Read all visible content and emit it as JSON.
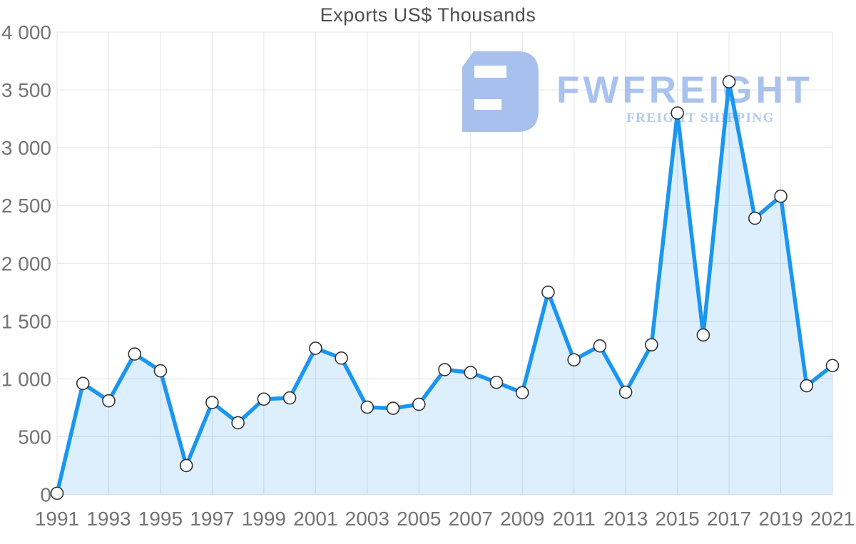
{
  "watermark": {
    "brand": "FWFREIGHT",
    "tagline": "FREIGHT SHIPPING",
    "logo_color": "#a7c0ed",
    "brand_color": "#a9c2ee",
    "tagline_color": "#b5c9f2"
  },
  "chart_data": {
    "type": "area",
    "title": "Exports US$ Thousands",
    "x": [
      1991,
      1992,
      1993,
      1994,
      1995,
      1996,
      1997,
      1998,
      1999,
      2000,
      2001,
      2002,
      2003,
      2004,
      2005,
      2006,
      2007,
      2008,
      2009,
      2010,
      2011,
      2012,
      2013,
      2014,
      2015,
      2016,
      2017,
      2018,
      2019,
      2020,
      2021
    ],
    "values": [
      10,
      960,
      810,
      1215,
      1070,
      250,
      795,
      620,
      825,
      835,
      1265,
      1180,
      755,
      745,
      780,
      1080,
      1055,
      970,
      880,
      1750,
      1165,
      1285,
      885,
      1295,
      3300,
      1380,
      3570,
      2390,
      2580,
      940,
      1115
    ],
    "xlabel": "",
    "ylabel": "",
    "ylim": [
      0,
      4000
    ],
    "y_ticks": [
      0,
      500,
      1000,
      1500,
      2000,
      2500,
      3000,
      3500,
      4000
    ],
    "y_tick_labels": [
      "0",
      "500",
      "1 000",
      "1 500",
      "2 000",
      "2 500",
      "3 000",
      "3 500",
      "4 000"
    ],
    "x_tick_labels": [
      "1991",
      "1993",
      "1995",
      "1997",
      "1999",
      "2001",
      "2003",
      "2005",
      "2007",
      "2009",
      "2011",
      "2013",
      "2015",
      "2017",
      "2019",
      "2021"
    ],
    "grid": true,
    "legend": "none",
    "colors": {
      "line": "#1b96f0",
      "fill": "rgba(27,150,240,0.15)",
      "grid": "#e3e3e3",
      "tick_label": "#747474",
      "title": "#4f4f4f",
      "marker_fill": "#ffffff",
      "marker_stroke": "#333333"
    }
  }
}
